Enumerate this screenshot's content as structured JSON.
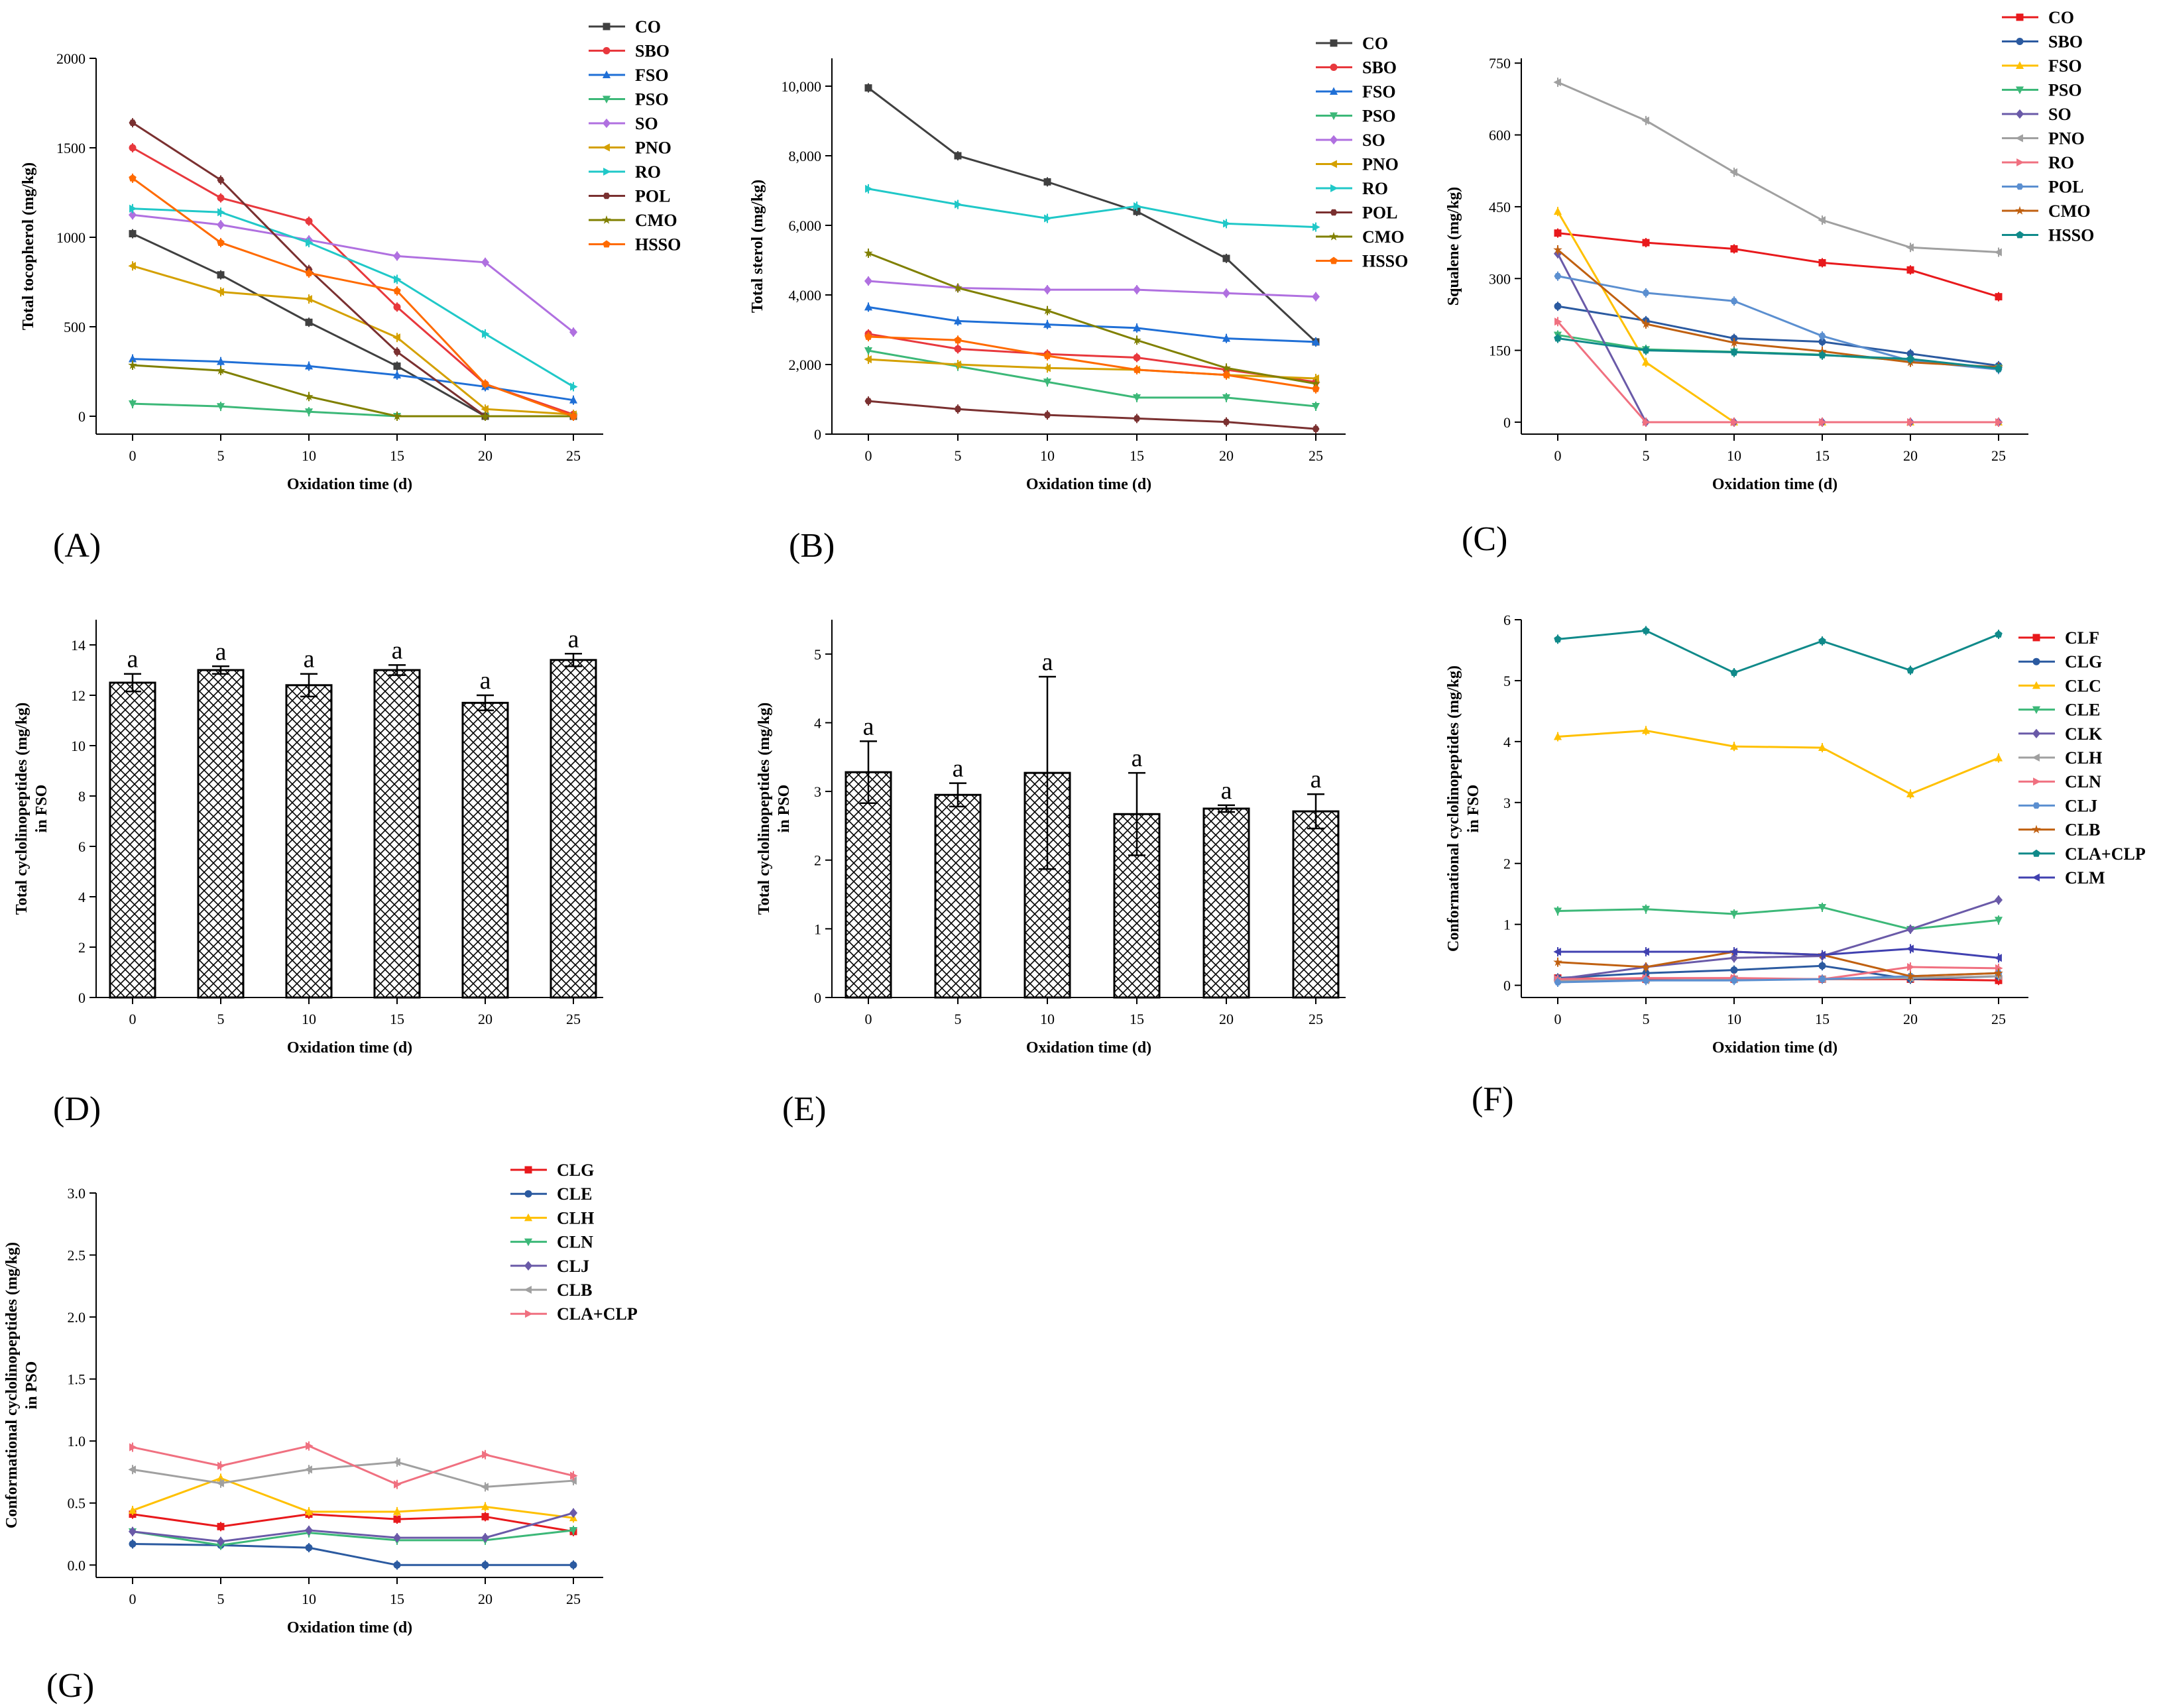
{
  "figure": {
    "xlabel": "Oxidation time (d)"
  },
  "chart_data": [
    {
      "panel": "A",
      "type": "line",
      "panel_label": "(A)",
      "ylabel": "Total tocopherol (mg/kg)",
      "x": [
        0,
        5,
        10,
        15,
        20,
        25
      ],
      "xticks": [
        "0",
        "5",
        "10",
        "15",
        "20",
        "25"
      ],
      "ylim": [
        -100,
        2000
      ],
      "yticks": [
        0,
        500,
        1000,
        1500,
        2000
      ],
      "ytick_labels": [
        "0",
        "500",
        "1000",
        "1500",
        "2000"
      ],
      "xlabel": "Oxidation time (d)",
      "series": [
        {
          "name": "CO",
          "color": "#404040",
          "marker": "square",
          "values": [
            1020,
            790,
            525,
            280,
            0,
            0
          ]
        },
        {
          "name": "SBO",
          "color": "#e8383d",
          "marker": "circle",
          "values": [
            1500,
            1220,
            1090,
            610,
            180,
            10
          ]
        },
        {
          "name": "FSO",
          "color": "#1f6fd6",
          "marker": "triangle",
          "values": [
            320,
            305,
            280,
            230,
            165,
            90
          ]
        },
        {
          "name": "PSO",
          "color": "#3cb878",
          "marker": "tridown",
          "values": [
            70,
            55,
            25,
            0,
            0,
            0
          ]
        },
        {
          "name": "SO",
          "color": "#b070e0",
          "marker": "diamond",
          "values": [
            1125,
            1070,
            985,
            895,
            860,
            470
          ]
        },
        {
          "name": "PNO",
          "color": "#d4a000",
          "marker": "triangleleft",
          "values": [
            840,
            695,
            655,
            440,
            40,
            10
          ]
        },
        {
          "name": "RO",
          "color": "#20c8c8",
          "marker": "triangleright",
          "values": [
            1160,
            1140,
            970,
            765,
            460,
            165
          ]
        },
        {
          "name": "POL",
          "color": "#7a3030",
          "marker": "hexagon",
          "values": [
            1640,
            1320,
            820,
            360,
            0,
            0
          ]
        },
        {
          "name": "CMO",
          "color": "#808000",
          "marker": "star",
          "values": [
            285,
            255,
            110,
            0,
            0,
            0
          ]
        },
        {
          "name": "HSSO",
          "color": "#ff6a00",
          "marker": "pentagon",
          "values": [
            1330,
            970,
            800,
            700,
            180,
            0
          ]
        }
      ]
    },
    {
      "panel": "B",
      "type": "line",
      "panel_label": "(B)",
      "ylabel": "Total sterol (mg/kg)",
      "x": [
        0,
        5,
        10,
        15,
        20,
        25
      ],
      "xticks": [
        "0",
        "5",
        "10",
        "15",
        "20",
        "25"
      ],
      "ylim": [
        0,
        10800
      ],
      "yticks": [
        0,
        2000,
        4000,
        6000,
        8000,
        10000
      ],
      "ytick_labels": [
        "0",
        "2,000",
        "4,000",
        "6,000",
        "8,000",
        "10,000"
      ],
      "xlabel": "Oxidation time (d)",
      "series": [
        {
          "name": "CO",
          "color": "#404040",
          "marker": "square",
          "values": [
            9950,
            8000,
            7250,
            6400,
            5050,
            2650
          ]
        },
        {
          "name": "SBO",
          "color": "#e8383d",
          "marker": "circle",
          "values": [
            2880,
            2450,
            2300,
            2200,
            1850,
            1500
          ]
        },
        {
          "name": "FSO",
          "color": "#1f6fd6",
          "marker": "triangle",
          "values": [
            3650,
            3250,
            3150,
            3050,
            2750,
            2650
          ]
        },
        {
          "name": "PSO",
          "color": "#3cb878",
          "marker": "tridown",
          "values": [
            2400,
            1950,
            1500,
            1050,
            1050,
            800
          ]
        },
        {
          "name": "SO",
          "color": "#b070e0",
          "marker": "diamond",
          "values": [
            4400,
            4200,
            4150,
            4150,
            4050,
            3950
          ]
        },
        {
          "name": "PNO",
          "color": "#d4a000",
          "marker": "triangleleft",
          "values": [
            2150,
            2000,
            1900,
            1850,
            1700,
            1600
          ]
        },
        {
          "name": "RO",
          "color": "#20c8c8",
          "marker": "triangleright",
          "values": [
            7050,
            6600,
            6200,
            6550,
            6050,
            5950
          ]
        },
        {
          "name": "POL",
          "color": "#7a3030",
          "marker": "hexagon",
          "values": [
            950,
            720,
            550,
            450,
            350,
            150
          ]
        },
        {
          "name": "CMO",
          "color": "#808000",
          "marker": "star",
          "values": [
            5200,
            4200,
            3550,
            2700,
            1900,
            1450
          ]
        },
        {
          "name": "HSSO",
          "color": "#ff6a00",
          "marker": "pentagon",
          "values": [
            2800,
            2700,
            2250,
            1850,
            1700,
            1300
          ]
        }
      ]
    },
    {
      "panel": "C",
      "type": "line",
      "panel_label": "(C)",
      "ylabel": "Squalene (mg/kg)",
      "x": [
        0,
        5,
        10,
        15,
        20,
        25
      ],
      "xticks": [
        "0",
        "5",
        "10",
        "15",
        "20",
        "25"
      ],
      "ylim": [
        -25,
        760
      ],
      "yticks": [
        0,
        150,
        300,
        450,
        600,
        750
      ],
      "ytick_labels": [
        "0",
        "150",
        "300",
        "450",
        "600",
        "750"
      ],
      "xlabel": "Oxidation time (d)",
      "series": [
        {
          "name": "CO",
          "color": "#e8191c",
          "marker": "square",
          "values": [
            395,
            375,
            362,
            333,
            318,
            262
          ]
        },
        {
          "name": "SBO",
          "color": "#2b5aa0",
          "marker": "circle",
          "values": [
            242,
            212,
            175,
            168,
            143,
            118
          ]
        },
        {
          "name": "FSO",
          "color": "#ffc000",
          "marker": "triangle",
          "values": [
            440,
            125,
            0,
            0,
            0,
            0
          ]
        },
        {
          "name": "PSO",
          "color": "#3cb878",
          "marker": "tridown",
          "values": [
            182,
            152,
            147,
            141,
            128,
            113
          ]
        },
        {
          "name": "SO",
          "color": "#6a5aa8",
          "marker": "diamond",
          "values": [
            352,
            0,
            0,
            0,
            0,
            0
          ]
        },
        {
          "name": "PNO",
          "color": "#a0a0a0",
          "marker": "triangleleft",
          "values": [
            710,
            630,
            522,
            422,
            365,
            355
          ]
        },
        {
          "name": "RO",
          "color": "#f07080",
          "marker": "triangleright",
          "values": [
            210,
            0,
            0,
            0,
            0,
            0
          ]
        },
        {
          "name": "POL",
          "color": "#5b8fd0",
          "marker": "hexagon",
          "values": [
            305,
            270,
            253,
            180,
            128,
            110
          ]
        },
        {
          "name": "CMO",
          "color": "#c06010",
          "marker": "star",
          "values": [
            360,
            205,
            166,
            148,
            125,
            115
          ]
        },
        {
          "name": "HSSO",
          "color": "#108a8a",
          "marker": "pentagon",
          "values": [
            175,
            150,
            146,
            140,
            132,
            112
          ]
        }
      ]
    },
    {
      "panel": "D",
      "type": "bar",
      "panel_label": "(D)",
      "ylabel": "Total cyclolinopeptides (mg/kg) in FSO",
      "categories": [
        "0",
        "5",
        "10",
        "15",
        "20",
        "25"
      ],
      "values": [
        12.5,
        13.0,
        12.4,
        13.0,
        11.7,
        13.4
      ],
      "errors": [
        0.35,
        0.15,
        0.45,
        0.2,
        0.3,
        0.25
      ],
      "letters": [
        "a",
        "a",
        "a",
        "a",
        "a",
        "a"
      ],
      "ylim": [
        0,
        15
      ],
      "yticks": [
        0,
        2,
        4,
        6,
        8,
        10,
        12,
        14
      ],
      "ytick_labels": [
        "0",
        "2",
        "4",
        "6",
        "8",
        "10",
        "12",
        "14"
      ],
      "xlabel": "Oxidation time (d)"
    },
    {
      "panel": "E",
      "type": "bar",
      "panel_label": "(E)",
      "ylabel": "Total cyclolinopeptides (mg/kg) in PSO",
      "categories": [
        "0",
        "5",
        "10",
        "15",
        "20",
        "25"
      ],
      "values": [
        3.28,
        2.95,
        3.27,
        2.67,
        2.75,
        2.71
      ],
      "errors": [
        0.45,
        0.17,
        1.4,
        0.6,
        0.05,
        0.25
      ],
      "letters": [
        "a",
        "a",
        "a",
        "a",
        "a",
        "a"
      ],
      "ylim": [
        0,
        5.5
      ],
      "yticks": [
        0,
        1,
        2,
        3,
        4,
        5
      ],
      "ytick_labels": [
        "0",
        "1",
        "2",
        "3",
        "4",
        "5"
      ],
      "xlabel": "Oxidation time (d)"
    },
    {
      "panel": "F",
      "type": "line",
      "panel_label": "(F)",
      "ylabel": "Conformational cyclolinopeptides (mg/kg) in FSO",
      "x": [
        0,
        5,
        10,
        15,
        20,
        25
      ],
      "xticks": [
        "0",
        "5",
        "10",
        "15",
        "20",
        "25"
      ],
      "ylim": [
        -0.2,
        6
      ],
      "yticks": [
        0,
        1,
        2,
        3,
        4,
        5,
        6
      ],
      "ytick_labels": [
        "0",
        "1",
        "2",
        "3",
        "4",
        "5",
        "6"
      ],
      "xlabel": "Oxidation time (d)",
      "series": [
        {
          "name": "CLF",
          "color": "#e8191c",
          "marker": "square",
          "values": [
            0.12,
            0.1,
            0.1,
            0.1,
            0.1,
            0.08
          ]
        },
        {
          "name": "CLG",
          "color": "#2b5aa0",
          "marker": "circle",
          "values": [
            0.12,
            0.2,
            0.25,
            0.32,
            0.1,
            0.15
          ]
        },
        {
          "name": "CLC",
          "color": "#ffc000",
          "marker": "triangle",
          "values": [
            4.08,
            4.18,
            3.92,
            3.9,
            3.14,
            3.73
          ]
        },
        {
          "name": "CLE",
          "color": "#3cb878",
          "marker": "tridown",
          "values": [
            1.22,
            1.25,
            1.17,
            1.28,
            0.92,
            1.07
          ]
        },
        {
          "name": "CLK",
          "color": "#6a5aa8",
          "marker": "diamond",
          "values": [
            0.1,
            0.3,
            0.45,
            0.48,
            0.92,
            1.4
          ]
        },
        {
          "name": "CLH",
          "color": "#a0a0a0",
          "marker": "triangleleft",
          "values": [
            0.08,
            0.08,
            0.1,
            0.1,
            0.12,
            0.15
          ]
        },
        {
          "name": "CLN",
          "color": "#f07080",
          "marker": "triangleright",
          "values": [
            0.1,
            0.12,
            0.12,
            0.1,
            0.3,
            0.28
          ]
        },
        {
          "name": "CLJ",
          "color": "#5b8fd0",
          "marker": "hexagon",
          "values": [
            0.05,
            0.08,
            0.08,
            0.1,
            0.15,
            0.2
          ]
        },
        {
          "name": "CLB",
          "color": "#c06010",
          "marker": "star",
          "values": [
            0.38,
            0.3,
            0.55,
            0.5,
            0.15,
            0.2
          ]
        },
        {
          "name": "CLA+CLP",
          "color": "#108a8a",
          "marker": "pentagon",
          "values": [
            5.68,
            5.82,
            5.13,
            5.65,
            5.17,
            5.76
          ]
        },
        {
          "name": "CLM",
          "color": "#4040b0",
          "marker": "triangleleft",
          "values": [
            0.55,
            0.55,
            0.55,
            0.5,
            0.6,
            0.45
          ]
        }
      ]
    },
    {
      "panel": "G",
      "type": "line",
      "panel_label": "(G)",
      "ylabel": "Conformational cyclolinopeptides (mg/kg) in PSO",
      "x": [
        0,
        5,
        10,
        15,
        20,
        25
      ],
      "xticks": [
        "0",
        "5",
        "10",
        "15",
        "20",
        "25"
      ],
      "ylim": [
        -0.1,
        3.0
      ],
      "yticks": [
        0.0,
        0.5,
        1.0,
        1.5,
        2.0,
        2.5,
        3.0
      ],
      "ytick_labels": [
        "0.0",
        "0.5",
        "1.0",
        "1.5",
        "2.0",
        "2.5",
        "3.0"
      ],
      "xlabel": "Oxidation time (d)",
      "series": [
        {
          "name": "CLG",
          "color": "#e8191c",
          "marker": "square",
          "values": [
            0.41,
            0.31,
            0.41,
            0.37,
            0.39,
            0.27
          ]
        },
        {
          "name": "CLE",
          "color": "#2b5aa0",
          "marker": "circle",
          "values": [
            0.17,
            0.16,
            0.14,
            0.0,
            0.0,
            0.0
          ]
        },
        {
          "name": "CLH",
          "color": "#ffc000",
          "marker": "triangle",
          "values": [
            0.44,
            0.7,
            0.43,
            0.43,
            0.47,
            0.38
          ]
        },
        {
          "name": "CLN",
          "color": "#3cb878",
          "marker": "tridown",
          "values": [
            0.27,
            0.16,
            0.26,
            0.2,
            0.2,
            0.28
          ]
        },
        {
          "name": "CLJ",
          "color": "#6a5aa8",
          "marker": "diamond",
          "values": [
            0.27,
            0.19,
            0.28,
            0.22,
            0.22,
            0.42
          ]
        },
        {
          "name": "CLB",
          "color": "#a0a0a0",
          "marker": "triangleleft",
          "values": [
            0.77,
            0.66,
            0.77,
            0.83,
            0.63,
            0.68
          ]
        },
        {
          "name": "CLA+CLP",
          "color": "#f07080",
          "marker": "triangleright",
          "values": [
            0.95,
            0.8,
            0.96,
            0.65,
            0.89,
            0.72
          ]
        }
      ]
    }
  ]
}
